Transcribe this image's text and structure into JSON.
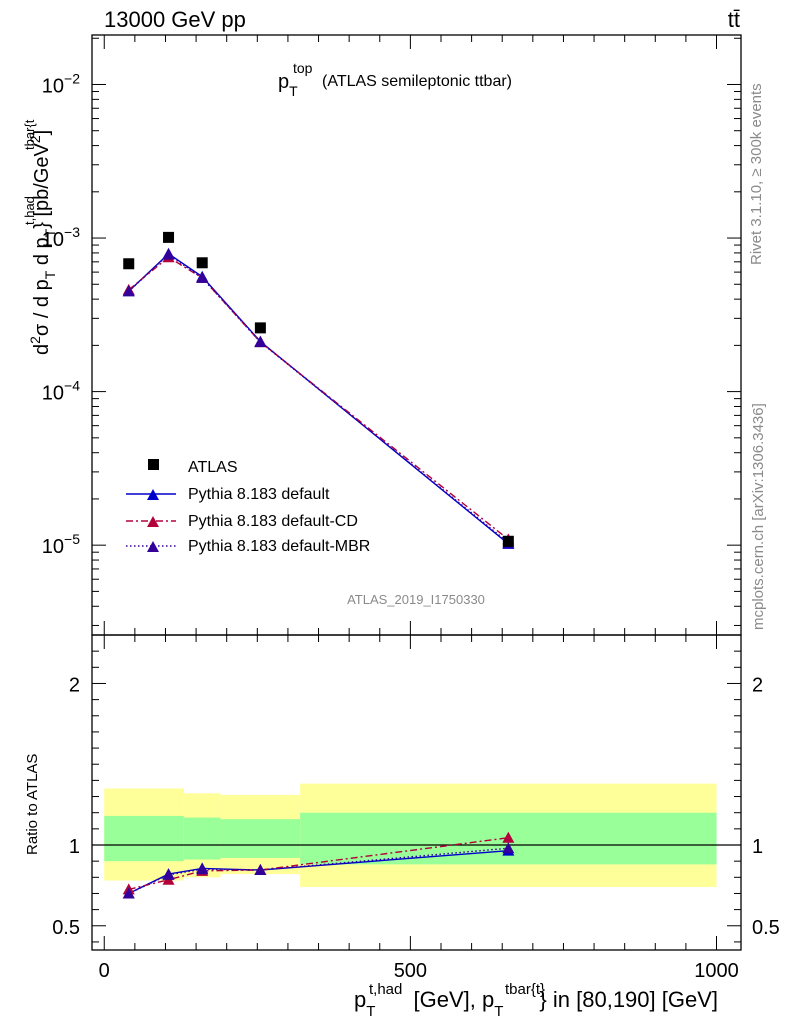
{
  "header": {
    "energy_label": "13000 GeV pp",
    "process_label": "tt̄"
  },
  "side": {
    "rivet": "Rivet 3.1.10, ≥ 300k events",
    "mcplots": "mcplots.cern.ch [arXiv:1306.3436]"
  },
  "title": {
    "main": "p",
    "sub": "T",
    "sup": "top",
    "rest": "(ATLAS semileptonic ttbar)"
  },
  "watermark": "ATLAS_2019_I1750330",
  "colors": {
    "data": "#000000",
    "default": "#0000cc",
    "cd": "#b3003b",
    "mbr": "#330099",
    "band_inner": "#99ff99",
    "band_outer": "#ffff99"
  },
  "legend": [
    {
      "label": "ATLAS",
      "marker": "square"
    },
    {
      "label": "Pythia 8.183 default",
      "marker": "triangle"
    },
    {
      "label": "Pythia 8.183 default-CD",
      "marker": "triangle"
    },
    {
      "label": "Pythia 8.183 default-MBR",
      "marker": "triangle"
    }
  ],
  "chart_data": {
    "type": "line",
    "xlim": [
      -20,
      1040
    ],
    "upper": {
      "yscale": "log",
      "ylim": [
        2.6e-06,
        0.021
      ],
      "ylabel": "d²σ / d p_T^{t,had} d p_T^{tbar{t}} [pb/GeV²]",
      "yticks": [
        1e-05,
        0.0001,
        0.001,
        0.01
      ],
      "ytick_labels": [
        {
          "base": "10",
          "exp": "−5"
        },
        {
          "base": "10",
          "exp": "−4"
        },
        {
          "base": "10",
          "exp": "−3"
        },
        {
          "base": "10",
          "exp": "−2"
        }
      ]
    },
    "lower": {
      "ylabel": "Ratio to ATLAS",
      "ylim": [
        0.35,
        2.3
      ],
      "yticks": [
        0.5,
        1,
        2
      ],
      "ytick_labels": [
        "0.5",
        "1",
        "2"
      ]
    },
    "xticks": [
      0,
      500,
      1000
    ],
    "xtick_labels": [
      "0",
      "500",
      "1000"
    ],
    "xlabel": {
      "p": "p",
      "sub1": "T",
      "sup1": "t,had",
      "mid": " [GeV], p",
      "sub2": "T",
      "sup2": "tbar{t}",
      "end": "} in [80,190] [GeV]"
    },
    "bins": [
      0,
      130,
      190,
      320,
      1000
    ],
    "x": [
      40,
      105,
      160,
      255,
      660
    ],
    "data": [
      0.00068,
      0.00101,
      0.00069,
      0.00026,
      1.06e-05
    ],
    "series": [
      {
        "name": "Pythia 8.183 default",
        "style": "solid",
        "values": [
          0.00045,
          0.00079,
          0.00056,
          0.000212,
          1.02e-05
        ],
        "ratio": [
          0.7,
          0.82,
          0.855,
          0.845,
          0.965
        ]
      },
      {
        "name": "Pythia 8.183 default-CD",
        "style": "dashdot",
        "values": [
          0.00046,
          0.00075,
          0.00055,
          0.00021,
          1.09e-05
        ],
        "ratio": [
          0.725,
          0.785,
          0.84,
          0.845,
          1.045
        ]
      },
      {
        "name": "Pythia 8.183 default-MBR",
        "style": "dotted",
        "values": [
          0.00045,
          0.00078,
          0.00055,
          0.00021,
          1.04e-05
        ],
        "ratio": [
          0.7,
          0.815,
          0.85,
          0.845,
          0.98
        ]
      }
    ],
    "bands": {
      "inner": [
        [
          0.9,
          1.18
        ],
        [
          0.91,
          1.17
        ],
        [
          0.92,
          1.16
        ],
        [
          0.88,
          1.2
        ]
      ],
      "outer": [
        [
          0.78,
          1.35
        ],
        [
          0.8,
          1.32
        ],
        [
          0.82,
          1.31
        ],
        [
          0.74,
          1.38
        ]
      ]
    }
  }
}
